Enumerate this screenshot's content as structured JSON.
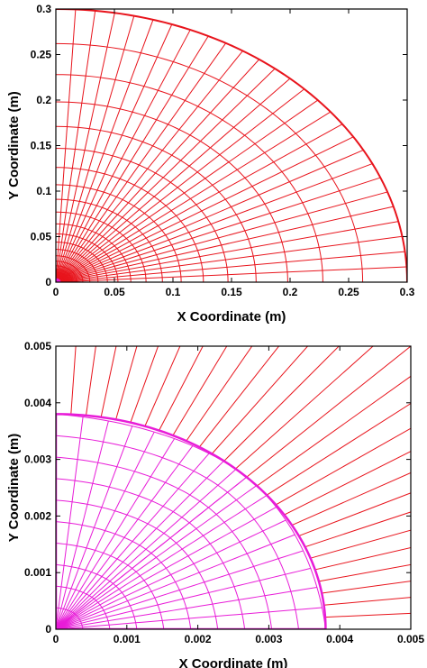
{
  "chart_data": [
    {
      "type": "line",
      "title": "",
      "xlabel": "X Coordinate (m)",
      "ylabel": "Y Coordinate (m)",
      "xlim": [
        0,
        0.3
      ],
      "ylim": [
        0,
        0.3
      ],
      "xticks": [
        0,
        0.05,
        0.1,
        0.15,
        0.2,
        0.25,
        0.3
      ],
      "yticks": [
        0,
        0.05,
        0.1,
        0.15,
        0.2,
        0.25,
        0.3
      ],
      "xtick_labels": [
        "0",
        "0.05",
        "0.1",
        "0.15",
        "0.2",
        "0.25",
        "0.3"
      ],
      "ytick_labels": [
        "0",
        "0.05",
        "0.1",
        "0.15",
        "0.2",
        "0.25",
        "0.3"
      ],
      "grid": false,
      "legend": "none",
      "series": [
        {
          "color": "#e8141c",
          "shape": "quarter-circle polar mesh",
          "outer_radius": 0.3,
          "radial_lines": 28,
          "arc_radii": [
            0.3,
            0.262,
            0.228,
            0.198,
            0.171,
            0.147,
            0.126,
            0.107,
            0.091,
            0.077,
            0.064,
            0.053,
            0.044,
            0.036,
            0.029,
            0.023,
            0.018,
            0.014,
            0.011,
            0.0085,
            0.0065,
            0.005,
            0.0038
          ]
        },
        {
          "color": "#e81cd8",
          "shape": "core mesh near origin",
          "outer_radius": 0.0038
        }
      ]
    },
    {
      "type": "line",
      "title": "",
      "xlabel": "X Coordinate (m)",
      "ylabel": "Y Coordinate (m)",
      "xlim": [
        0,
        0.005
      ],
      "ylim": [
        0,
        0.005
      ],
      "xticks": [
        0,
        0.001,
        0.002,
        0.003,
        0.004,
        0.005
      ],
      "yticks": [
        0,
        0.001,
        0.002,
        0.003,
        0.004,
        0.005
      ],
      "xtick_labels": [
        "0",
        "0.001",
        "0.002",
        "0.003",
        "0.004",
        "0.005"
      ],
      "ytick_labels": [
        "0",
        "0.001",
        "0.002",
        "0.003",
        "0.004",
        "0.005"
      ],
      "grid": false,
      "legend": "none",
      "series": [
        {
          "color": "#e8141c",
          "shape": "radial lines",
          "radial_lines": 28,
          "inner_radius": 0.0038
        },
        {
          "color": "#e81cd8",
          "shape": "core mesh (quarter circle)",
          "radius": 0.0038,
          "mesh_divisions": 10
        }
      ]
    }
  ]
}
